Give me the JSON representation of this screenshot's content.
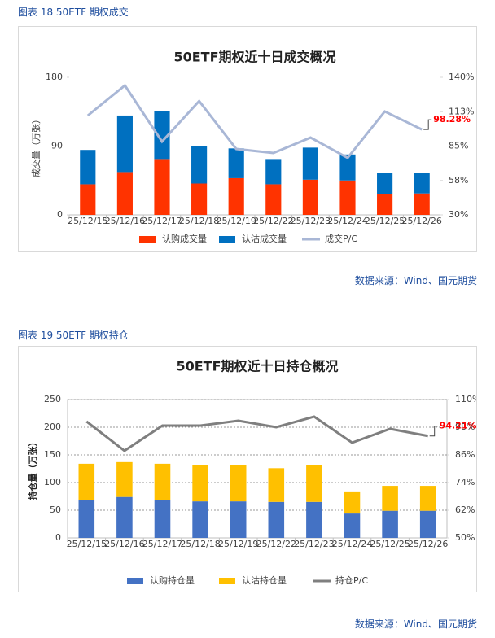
{
  "captions": [
    "图表 18 50ETF 期权成交",
    "图表 19 50ETF 期权持仓"
  ],
  "sources": [
    "数据来源：Wind、国元期货",
    "数据来源：Wind、国元期货"
  ],
  "chart_data": [
    {
      "type": "combo",
      "title": "50ETF期权近十日成交概况",
      "ylabel": "成交量（万张）",
      "categories": [
        "25/12/15",
        "25/12/16",
        "25/12/17",
        "25/12/18",
        "25/12/19",
        "25/12/22",
        "25/12/23",
        "25/12/24",
        "25/12/25",
        "25/12/26"
      ],
      "series": [
        {
          "name": "认购成交量",
          "type": "bar",
          "color": "#ff3300",
          "values": [
            40,
            56,
            72,
            41,
            48,
            40,
            46,
            45,
            27,
            28
          ]
        },
        {
          "name": "认沽成交量",
          "type": "bar",
          "color": "#0070c0",
          "values": [
            45,
            74,
            64,
            49,
            39,
            32,
            42,
            34,
            28,
            27
          ]
        },
        {
          "name": "成交P/C",
          "type": "line",
          "axis": "y2",
          "color": "#a9b7d6",
          "values": [
            109.4,
            133.5,
            88.6,
            121,
            82.7,
            79.5,
            91.8,
            75.6,
            112.7,
            98.28
          ],
          "value_labels": [
            null,
            null,
            null,
            null,
            null,
            null,
            null,
            null,
            null,
            "98.28%"
          ]
        }
      ],
      "ylim": [
        0,
        180
      ],
      "yticks": [
        0,
        90,
        180
      ],
      "y2lim": [
        30,
        140
      ],
      "y2ticks": [
        {
          "value": 30,
          "label": "30%"
        },
        {
          "value": 57.5,
          "label": "58%"
        },
        {
          "value": 85,
          "label": "85%"
        },
        {
          "value": 112.5,
          "label": "113%"
        },
        {
          "value": 140,
          "label": "140%"
        }
      ],
      "grid": false,
      "stacked": true
    },
    {
      "type": "combo",
      "title": "50ETF期权近十日持仓概况",
      "ylabel": "持仓量（万张）",
      "categories": [
        "25/12/15",
        "25/12/16",
        "25/12/17",
        "25/12/18",
        "25/12/19",
        "25/12/22",
        "25/12/23",
        "25/12/24",
        "25/12/25",
        "25/12/26"
      ],
      "series": [
        {
          "name": "认购持仓量",
          "type": "bar",
          "color": "#4472c4",
          "values": [
            68,
            74,
            68,
            66,
            66,
            65,
            65,
            44,
            49,
            49
          ]
        },
        {
          "name": "认沽持仓量",
          "type": "bar",
          "color": "#ffc000",
          "values": [
            66,
            63,
            66,
            66,
            66,
            61,
            66,
            40,
            45,
            45
          ]
        },
        {
          "name": "持仓P/C",
          "type": "line",
          "axis": "y2",
          "color": "#7f7f7f",
          "values": [
            100.5,
            87.8,
            98.7,
            98.7,
            100.8,
            98,
            102.6,
            91.3,
            97.3,
            94.21
          ],
          "value_labels": [
            null,
            null,
            null,
            null,
            null,
            null,
            null,
            null,
            null,
            "94.21%"
          ]
        }
      ],
      "ylim": [
        0,
        250
      ],
      "yticks": [
        0,
        50,
        100,
        150,
        200,
        250
      ],
      "y2lim": [
        50,
        110
      ],
      "y2ticks": [
        {
          "value": 50,
          "label": "50%"
        },
        {
          "value": 62,
          "label": "62%"
        },
        {
          "value": 74,
          "label": "74%"
        },
        {
          "value": 86,
          "label": "86%"
        },
        {
          "value": 98,
          "label": "98%"
        },
        {
          "value": 110,
          "label": "110%"
        }
      ],
      "grid": true,
      "stacked": true
    }
  ]
}
